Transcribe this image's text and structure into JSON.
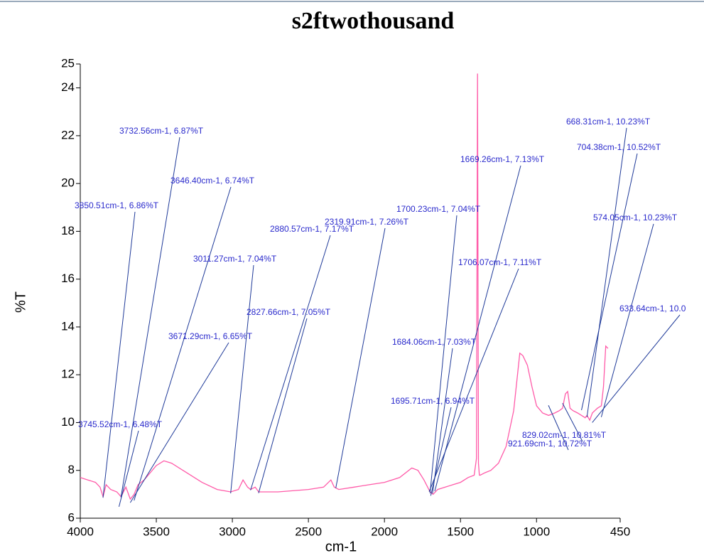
{
  "chart_data": {
    "type": "line",
    "title": "s2ftwothousand",
    "x_label": "cm-1",
    "y_label": "%T",
    "xlim": [
      4000,
      450
    ],
    "xticks": [
      4000,
      3500,
      3000,
      2500,
      2000,
      1500,
      1000,
      450
    ],
    "ylim": [
      6,
      25
    ],
    "yticks": [
      6,
      8,
      10,
      12,
      14,
      16,
      18,
      20,
      22,
      24,
      25
    ],
    "series": [
      {
        "color": "#ff5aa8",
        "x": [
          4000,
          3950,
          3900,
          3870,
          3850,
          3830,
          3800,
          3760,
          3732,
          3700,
          3671,
          3646,
          3620,
          3580,
          3500,
          3450,
          3400,
          3300,
          3200,
          3100,
          3011,
          2960,
          2930,
          2900,
          2880,
          2850,
          2827,
          2700,
          2500,
          2400,
          2352,
          2330,
          2300,
          2200,
          2100,
          2000,
          1900,
          1820,
          1780,
          1740,
          1700,
          1680,
          1650,
          1600,
          1550,
          1500,
          1450,
          1410,
          1395,
          1388,
          1382,
          1376,
          1370,
          1340,
          1300,
          1250,
          1200,
          1150,
          1110,
          1090,
          1060,
          1030,
          1000,
          960,
          921,
          880,
          850,
          829,
          810,
          795,
          780,
          760,
          730,
          704,
          680,
          668,
          650,
          633,
          600,
          574,
          560,
          545,
          530
        ],
        "values": [
          7.7,
          7.6,
          7.5,
          7.3,
          6.9,
          7.4,
          7.2,
          7.1,
          6.9,
          7.3,
          6.8,
          7.0,
          7.4,
          7.6,
          8.2,
          8.4,
          8.3,
          7.9,
          7.5,
          7.2,
          7.1,
          7.2,
          7.6,
          7.3,
          7.2,
          7.3,
          7.1,
          7.1,
          7.2,
          7.3,
          7.6,
          7.3,
          7.2,
          7.3,
          7.4,
          7.5,
          7.7,
          8.1,
          8.0,
          7.6,
          7.1,
          7.0,
          7.2,
          7.3,
          7.4,
          7.5,
          7.7,
          7.8,
          8.5,
          24.6,
          8.3,
          7.8,
          7.8,
          7.9,
          8.0,
          8.3,
          9.0,
          10.5,
          12.9,
          12.8,
          12.4,
          11.5,
          10.7,
          10.4,
          10.3,
          10.4,
          10.5,
          10.6,
          11.2,
          11.3,
          10.6,
          10.5,
          10.4,
          10.3,
          10.2,
          10.3,
          10.1,
          10.4,
          10.6,
          10.7,
          11.5,
          13.2,
          13.1
        ]
      }
    ],
    "annotations": [
      {
        "text": "3850.51cm-1, 6.86%T",
        "x": 3850.51,
        "y": 6.86
      },
      {
        "text": "3732.56cm-1, 6.87%T",
        "x": 3732.56,
        "y": 6.87
      },
      {
        "text": "3646.40cm-1, 6.74%T",
        "x": 3646.4,
        "y": 6.74
      },
      {
        "text": "3671.29cm-1, 6.65%T",
        "x": 3671.29,
        "y": 6.65
      },
      {
        "text": "3745.52cm-1, 6.48%T",
        "x": 3745.52,
        "y": 6.48
      },
      {
        "text": "3011.27cm-1, 7.04%T",
        "x": 3011.27,
        "y": 7.04
      },
      {
        "text": "2880.57cm-1, 7.17%T",
        "x": 2880.57,
        "y": 7.17
      },
      {
        "text": "2827.66cm-1, 7.05%T",
        "x": 2827.66,
        "y": 7.05
      },
      {
        "text": "2319.91cm-1, 7.26%T",
        "x": 2319.91,
        "y": 7.26
      },
      {
        "text": "1700.23cm-1, 7.04%T",
        "x": 1700.23,
        "y": 7.04
      },
      {
        "text": "1669.26cm-1, 7.13%T",
        "x": 1669.26,
        "y": 7.13
      },
      {
        "text": "1706.07cm-1, 7.11%T",
        "x": 1706.07,
        "y": 7.11
      },
      {
        "text": "1684.06cm-1, 7.03%T",
        "x": 1684.06,
        "y": 7.03
      },
      {
        "text": "1695.71cm-1, 6.94%T",
        "x": 1695.71,
        "y": 6.94
      },
      {
        "text": "668.31cm-1, 10.23%T",
        "x": 668.31,
        "y": 10.23
      },
      {
        "text": "704.38cm-1, 10.52%T",
        "x": 704.38,
        "y": 10.52
      },
      {
        "text": "574.05cm-1, 10.23%T",
        "x": 574.05,
        "y": 10.23
      },
      {
        "text": "633.64cm-1, 10.0",
        "x": 633.64,
        "y": 10.0
      },
      {
        "text": "829.02cm-1, 10.81%T",
        "x": 829.02,
        "y": 10.81
      },
      {
        "text": "921.69cm-1, 10.72%T",
        "x": 921.69,
        "y": 10.72
      }
    ]
  }
}
